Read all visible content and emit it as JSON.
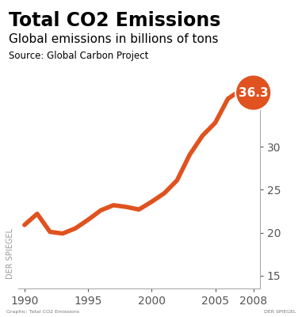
{
  "chart_data": {
    "type": "line",
    "title": "Total CO2 Emissions",
    "subtitle": "Global emissions in billions of tons",
    "source": "Source: Global Carbon Project",
    "watermark": "DER SPIEGEL",
    "footer": "Graphic: Total CO2 Emissions",
    "footer_right": "DER SPIEGEL",
    "x": [
      1990,
      1991,
      1992,
      1993,
      1994,
      1995,
      1996,
      1997,
      1998,
      1999,
      2000,
      2001,
      2002,
      2003,
      2004,
      2005,
      2006,
      2007,
      2008
    ],
    "values": [
      20.9,
      22.2,
      20.1,
      19.9,
      20.5,
      21.5,
      22.6,
      23.2,
      23.0,
      22.7,
      23.6,
      24.6,
      26.1,
      29.1,
      31.3,
      32.8,
      35.6,
      36.6,
      36.3
    ],
    "value_labels": [
      null,
      null,
      null,
      null,
      null,
      null,
      null,
      null,
      null,
      null,
      null,
      null,
      null,
      null,
      null,
      null,
      null,
      null,
      "36.3"
    ],
    "data_labels": true,
    "color": "#e0521f",
    "xlim": [
      1989.5,
      2008.5
    ],
    "xticks": [
      1990,
      1995,
      2000,
      2005,
      2008
    ],
    "ylim": [
      13.5,
      37.5
    ],
    "yticks": [
      15,
      20,
      25,
      30
    ],
    "grid": false
  }
}
